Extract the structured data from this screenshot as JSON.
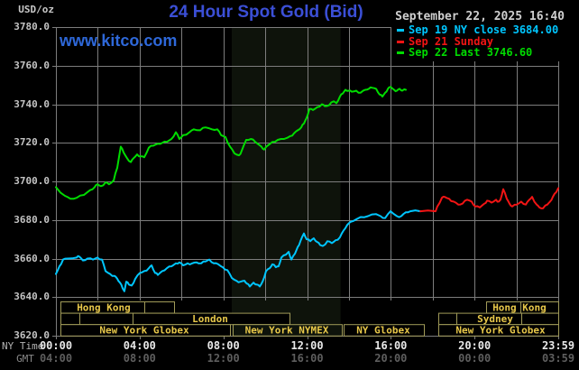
{
  "header": {
    "unit": "USD/oz",
    "title": "24 Hour Spot Gold (Bid)",
    "datetime": "September 22, 2025 16:40",
    "watermark": "www.kitco.com"
  },
  "colors": {
    "background": "#000000",
    "grid": "#7d7d7d",
    "plot_border": "#7d7d7d",
    "nymex_band": "#0e130b",
    "title_blue": "#3b4fd6",
    "watermark_blue": "#2e68d9",
    "session_border": "#a09a58",
    "session_text": "#e8c84a",
    "green": "#00dc00",
    "cyan": "#00c6ff",
    "red": "#f21414"
  },
  "axis": {
    "ny_time_label": "NY Time",
    "gmt_label": "GMT",
    "y_ticks": [
      "3780.0",
      "3760.0",
      "3740.0",
      "3720.0",
      "3700.0",
      "3680.0",
      "3660.0",
      "3640.0",
      "3620.0"
    ],
    "x_ticks_ny": [
      "00:00",
      "04:00",
      "08:00",
      "12:00",
      "16:00",
      "20:00",
      "23:59"
    ],
    "x_ticks_gmt": [
      "04:00",
      "08:00",
      "12:00",
      "16:00",
      "20:00",
      "00:00",
      "03:59"
    ],
    "x_tick_hours": [
      0,
      4,
      8,
      12,
      16,
      20,
      24
    ]
  },
  "legend": [
    {
      "label": "Sep 19 NY close 3684.00",
      "color": "#00c6ff"
    },
    {
      "label": "Sep 21 Sunday",
      "color": "#f21414"
    },
    {
      "label": "Sep 22 Last 3746.60",
      "color": "#00dc00"
    }
  ],
  "chart_data": {
    "type": "line",
    "title": "24 Hour Spot Gold (Bid)",
    "ylabel": "USD/oz",
    "xlabel": "NY Time (hours)",
    "x_range_hours": [
      0,
      24
    ],
    "y_range": [
      3620,
      3780
    ],
    "y_step": 20,
    "x_grid_step_hours": 2,
    "grid": true,
    "shaded_band_hours": [
      8.4,
      13.6
    ],
    "series": [
      {
        "name": "Sep 22 (today)",
        "color": "#00dc00",
        "last": 3746.6,
        "points": [
          [
            0,
            3697
          ],
          [
            0.43,
            3692.5
          ],
          [
            0.69,
            3691
          ],
          [
            0.99,
            3691.5
          ],
          [
            1.34,
            3693
          ],
          [
            1.64,
            3695.5
          ],
          [
            1.85,
            3697
          ],
          [
            1.98,
            3698.5
          ],
          [
            2.15,
            3697.5
          ],
          [
            2.37,
            3699.5
          ],
          [
            2.54,
            3698.5
          ],
          [
            2.76,
            3700.5
          ],
          [
            2.93,
            3707
          ],
          [
            3.02,
            3713
          ],
          [
            3.1,
            3718
          ],
          [
            3.23,
            3715
          ],
          [
            3.4,
            3712
          ],
          [
            3.58,
            3710
          ],
          [
            3.71,
            3712
          ],
          [
            3.88,
            3714
          ],
          [
            4.05,
            3713
          ],
          [
            4.22,
            3712.5
          ],
          [
            4.44,
            3717.5
          ],
          [
            4.65,
            3718.5
          ],
          [
            4.87,
            3719.5
          ],
          [
            5.08,
            3720
          ],
          [
            5.3,
            3720.5
          ],
          [
            5.52,
            3722
          ],
          [
            5.73,
            3725.5
          ],
          [
            5.9,
            3722
          ],
          [
            6.08,
            3724
          ],
          [
            6.38,
            3725.5
          ],
          [
            6.59,
            3727
          ],
          [
            6.89,
            3726.5
          ],
          [
            7.15,
            3728
          ],
          [
            7.45,
            3727
          ],
          [
            7.71,
            3727
          ],
          [
            7.89,
            3724
          ],
          [
            8.1,
            3723
          ],
          [
            8.32,
            3718
          ],
          [
            8.53,
            3714.5
          ],
          [
            8.75,
            3713.5
          ],
          [
            8.88,
            3716
          ],
          [
            9.09,
            3721.5
          ],
          [
            9.31,
            3722
          ],
          [
            9.52,
            3720.5
          ],
          [
            9.82,
            3718
          ],
          [
            9.95,
            3716.5
          ],
          [
            10.17,
            3719
          ],
          [
            10.34,
            3720.5
          ],
          [
            10.6,
            3721.5
          ],
          [
            10.9,
            3722
          ],
          [
            11.2,
            3723.5
          ],
          [
            11.38,
            3725
          ],
          [
            11.55,
            3726.5
          ],
          [
            11.72,
            3728
          ],
          [
            11.85,
            3730
          ],
          [
            11.98,
            3733
          ],
          [
            12.11,
            3737.5
          ],
          [
            12.28,
            3737
          ],
          [
            12.49,
            3738.5
          ],
          [
            12.71,
            3740
          ],
          [
            12.84,
            3739
          ],
          [
            13.05,
            3739.5
          ],
          [
            13.27,
            3741.5
          ],
          [
            13.4,
            3740.5
          ],
          [
            13.57,
            3744
          ],
          [
            13.7,
            3745.5
          ],
          [
            13.83,
            3747.5
          ],
          [
            14,
            3747
          ],
          [
            14.13,
            3746.5
          ],
          [
            14.35,
            3747
          ],
          [
            14.56,
            3746
          ],
          [
            14.78,
            3747.5
          ],
          [
            14.95,
            3748
          ],
          [
            15.12,
            3748.5
          ],
          [
            15.3,
            3748
          ],
          [
            15.47,
            3745
          ],
          [
            15.6,
            3744
          ],
          [
            15.73,
            3746
          ],
          [
            15.86,
            3748
          ],
          [
            15.99,
            3749
          ],
          [
            16.16,
            3747.5
          ],
          [
            16.29,
            3747
          ],
          [
            16.42,
            3748
          ],
          [
            16.55,
            3747
          ],
          [
            16.72,
            3747.5
          ]
        ]
      },
      {
        "name": "Sep 19 (Friday)",
        "color": "#00c6ff",
        "close": 3684.0,
        "points": [
          [
            0,
            3652
          ],
          [
            0.17,
            3656
          ],
          [
            0.34,
            3659.5
          ],
          [
            0.56,
            3660
          ],
          [
            0.99,
            3660.5
          ],
          [
            1.12,
            3661
          ],
          [
            1.29,
            3659
          ],
          [
            1.51,
            3660
          ],
          [
            1.77,
            3659.5
          ],
          [
            1.98,
            3660.5
          ],
          [
            2.2,
            3659.5
          ],
          [
            2.37,
            3653.5
          ],
          [
            2.59,
            3652
          ],
          [
            2.8,
            3651
          ],
          [
            2.93,
            3649.5
          ],
          [
            3.06,
            3647.5
          ],
          [
            3.19,
            3644.5
          ],
          [
            3.27,
            3643
          ],
          [
            3.36,
            3648
          ],
          [
            3.49,
            3646.5
          ],
          [
            3.62,
            3646
          ],
          [
            3.79,
            3649.5
          ],
          [
            4.01,
            3652.5
          ],
          [
            4.22,
            3653.5
          ],
          [
            4.44,
            3655
          ],
          [
            4.57,
            3656.5
          ],
          [
            4.74,
            3652.5
          ],
          [
            4.87,
            3651.5
          ],
          [
            5.08,
            3653.5
          ],
          [
            5.3,
            3655
          ],
          [
            5.52,
            3656
          ],
          [
            5.73,
            3657.5
          ],
          [
            5.9,
            3658
          ],
          [
            6.08,
            3656.5
          ],
          [
            6.29,
            3657.5
          ],
          [
            6.51,
            3657.5
          ],
          [
            6.72,
            3658
          ],
          [
            6.94,
            3657.5
          ],
          [
            7.15,
            3658.5
          ],
          [
            7.33,
            3659.5
          ],
          [
            7.54,
            3657.5
          ],
          [
            7.76,
            3657
          ],
          [
            7.97,
            3655.5
          ],
          [
            8.19,
            3654
          ],
          [
            8.4,
            3650
          ],
          [
            8.62,
            3648.5
          ],
          [
            8.83,
            3648
          ],
          [
            9.01,
            3648.5
          ],
          [
            9.13,
            3647
          ],
          [
            9.26,
            3645.5
          ],
          [
            9.44,
            3647.5
          ],
          [
            9.61,
            3646.5
          ],
          [
            9.74,
            3645.5
          ],
          [
            9.87,
            3648
          ],
          [
            10.04,
            3653.5
          ],
          [
            10.21,
            3655
          ],
          [
            10.34,
            3657
          ],
          [
            10.51,
            3655.5
          ],
          [
            10.64,
            3656
          ],
          [
            10.77,
            3660.5
          ],
          [
            10.99,
            3662
          ],
          [
            11.12,
            3663.5
          ],
          [
            11.25,
            3659.5
          ],
          [
            11.42,
            3662.5
          ],
          [
            11.55,
            3666
          ],
          [
            11.68,
            3669
          ],
          [
            11.85,
            3673
          ],
          [
            11.98,
            3670
          ],
          [
            12.15,
            3669
          ],
          [
            12.32,
            3670.5
          ],
          [
            12.49,
            3668.5
          ],
          [
            12.62,
            3667
          ],
          [
            12.75,
            3666.5
          ],
          [
            12.97,
            3669
          ],
          [
            13.18,
            3668
          ],
          [
            13.36,
            3669.5
          ],
          [
            13.57,
            3671
          ],
          [
            13.74,
            3674.5
          ],
          [
            13.92,
            3677.5
          ],
          [
            14.22,
            3679.5
          ],
          [
            14.56,
            3681.5
          ],
          [
            14.91,
            3682
          ],
          [
            15.3,
            3683
          ],
          [
            15.51,
            3682
          ],
          [
            15.73,
            3681
          ],
          [
            15.99,
            3684.5
          ],
          [
            16.29,
            3682
          ],
          [
            16.5,
            3682
          ],
          [
            16.72,
            3684
          ],
          [
            16.93,
            3684.5
          ],
          [
            17.41,
            3684.5
          ]
        ]
      },
      {
        "name": "Sep 21 (Sunday)",
        "color": "#f21414",
        "points": [
          [
            17.41,
            3684.5
          ],
          [
            18.14,
            3684.5
          ],
          [
            18.22,
            3687
          ],
          [
            18.44,
            3691.5
          ],
          [
            18.57,
            3692
          ],
          [
            18.78,
            3691
          ],
          [
            19,
            3689.5
          ],
          [
            19.22,
            3688
          ],
          [
            19.43,
            3688.5
          ],
          [
            19.65,
            3690.5
          ],
          [
            19.86,
            3689.5
          ],
          [
            20.03,
            3687
          ],
          [
            20.25,
            3686.5
          ],
          [
            20.47,
            3688.5
          ],
          [
            20.6,
            3690
          ],
          [
            20.81,
            3689
          ],
          [
            21.03,
            3690.5
          ],
          [
            21.16,
            3689.5
          ],
          [
            21.24,
            3690.5
          ],
          [
            21.37,
            3696
          ],
          [
            21.54,
            3691
          ],
          [
            21.67,
            3688.5
          ],
          [
            21.8,
            3687
          ],
          [
            22.02,
            3688
          ],
          [
            22.23,
            3689.5
          ],
          [
            22.45,
            3688
          ],
          [
            22.62,
            3690.5
          ],
          [
            22.75,
            3692
          ],
          [
            22.97,
            3688
          ],
          [
            23.1,
            3686.5
          ],
          [
            23.27,
            3686
          ],
          [
            23.48,
            3688
          ],
          [
            23.61,
            3689.5
          ],
          [
            23.74,
            3692
          ],
          [
            23.91,
            3694.5
          ],
          [
            24,
            3696.5
          ]
        ]
      }
    ],
    "sessions": [
      {
        "row": 0,
        "boxes": [
          {
            "label": "Hong Kong",
            "x1": 67,
            "x2": 193,
            "divider": 160,
            "label_cx": 115
          },
          {
            "label": "Hong Kong",
            "x1": 539,
            "x2": 619,
            "divider": 577,
            "label_cx": 576
          }
        ]
      },
      {
        "row": 1,
        "boxes": [
          {
            "label": "",
            "x1": 67,
            "x2": 88
          },
          {
            "label": "",
            "x1": 88,
            "x2": 147
          },
          {
            "label": "London",
            "x1": 147,
            "x2": 321,
            "label_cx": 233
          },
          {
            "label": "",
            "x1": 486,
            "x2": 506
          },
          {
            "label": "Sydney",
            "x1": 506,
            "x2": 578,
            "label_cx": 549
          },
          {
            "label": "",
            "x1": 578,
            "x2": 619
          }
        ]
      },
      {
        "row": 2,
        "boxes": [
          {
            "label": "New York Globex",
            "x1": 67,
            "x2": 255,
            "label_cx": 160
          },
          {
            "label": "New York NYMEX",
            "x1": 258,
            "x2": 379,
            "label_cx": 318,
            "band_fill": true
          },
          {
            "label": "NY Globex",
            "x1": 381,
            "x2": 470,
            "label_cx": 425
          },
          {
            "label": "New York Globex",
            "x1": 486,
            "x2": 619,
            "label_cx": 555
          }
        ]
      }
    ]
  }
}
